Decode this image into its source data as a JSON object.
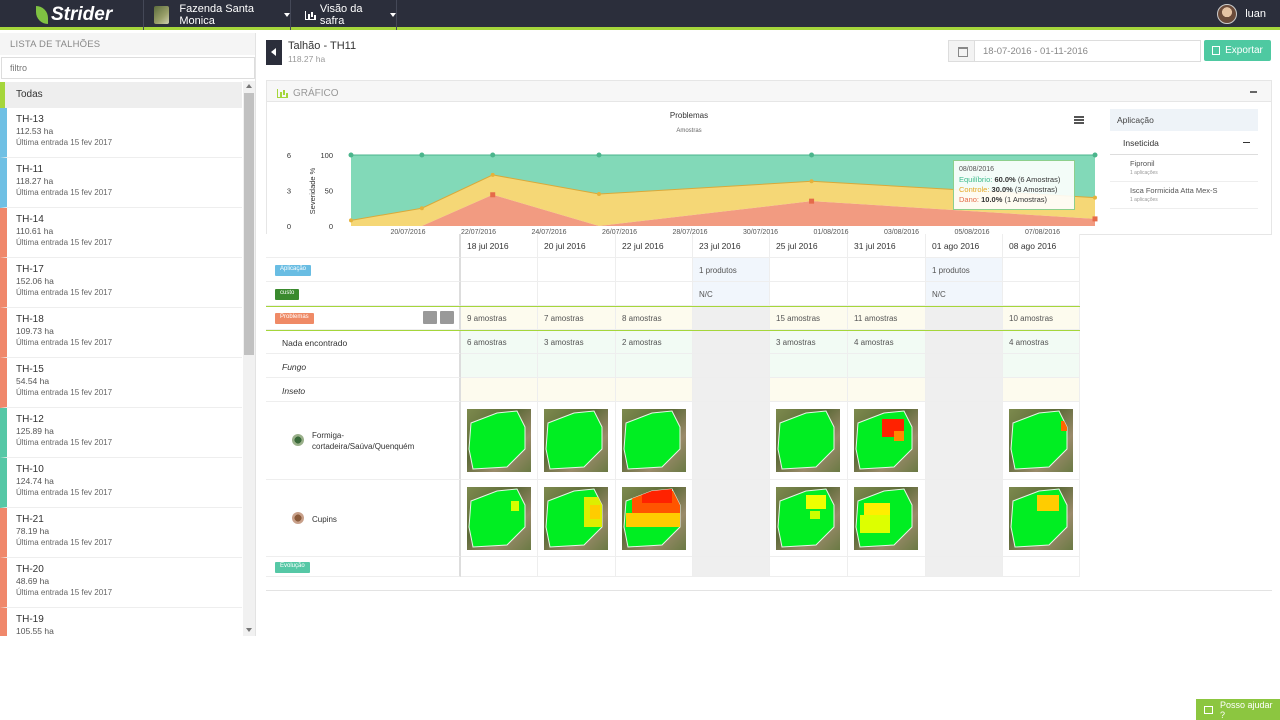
{
  "header": {
    "logo": "Strider",
    "farm": "Fazenda Santa Monica",
    "crop_view": "Visão da safra",
    "user": "luan"
  },
  "sidebar": {
    "title": "LISTA DE TALHÕES",
    "filter_placeholder": "filtro",
    "all_label": "Todas",
    "items": [
      {
        "name": "TH-13",
        "area": "112.53 ha",
        "last": "Última entrada 15 fev 2017",
        "color": "#6fc0e4"
      },
      {
        "name": "TH-11",
        "area": "118.27 ha",
        "last": "Última entrada 15 fev 2017",
        "color": "#6fc0e4"
      },
      {
        "name": "TH-14",
        "area": "110.61 ha",
        "last": "Última entrada 15 fev 2017",
        "color": "#f0886b"
      },
      {
        "name": "TH-17",
        "area": "152.06 ha",
        "last": "Última entrada 15 fev 2017",
        "color": "#f0886b"
      },
      {
        "name": "TH-18",
        "area": "109.73 ha",
        "last": "Última entrada 15 fev 2017",
        "color": "#f0886b"
      },
      {
        "name": "TH-15",
        "area": "54.54 ha",
        "last": "Última entrada 15 fev 2017",
        "color": "#f0886b"
      },
      {
        "name": "TH-12",
        "area": "125.89 ha",
        "last": "Última entrada 15 fev 2017",
        "color": "#56c8a6"
      },
      {
        "name": "TH-10",
        "area": "124.74 ha",
        "last": "Última entrada 15 fev 2017",
        "color": "#56c8a6"
      },
      {
        "name": "TH-21",
        "area": "78.19 ha",
        "last": "Última entrada 15 fev 2017",
        "color": "#f0886b"
      },
      {
        "name": "TH-20",
        "area": "48.69 ha",
        "last": "Última entrada 15 fev 2017",
        "color": "#f0886b"
      },
      {
        "name": "TH-19",
        "area": "105.55 ha",
        "last": "",
        "color": "#f0886b"
      }
    ]
  },
  "main": {
    "plot_title": "Talhão - TH11",
    "plot_area": "118.27 ha",
    "date_range": "18-07-2016 - 01-11-2016",
    "export_label": "Exportar",
    "panel_title": "GRÁFICO"
  },
  "chart_data": {
    "type": "area",
    "title": "Problemas",
    "subtitle": "Amostras",
    "ylabel": "Severidade %",
    "left_ticks": [
      "6",
      "3",
      "0"
    ],
    "y_ticks": [
      "100",
      "50",
      "0"
    ],
    "x_labels": [
      "20/07/2016",
      "22/07/2016",
      "24/07/2016",
      "26/07/2016",
      "28/07/2016",
      "30/07/2016",
      "01/08/2016",
      "03/08/2016",
      "05/08/2016",
      "07/08/2016"
    ],
    "ylim": [
      0,
      100
    ],
    "xlim": [
      "2016-07-18",
      "2016-08-08"
    ],
    "series": [
      {
        "name": "Equilíbrio",
        "color": "#82d9b8"
      },
      {
        "name": "Controle",
        "color": "#f5d776"
      },
      {
        "name": "Dano",
        "color": "#f29b81"
      }
    ],
    "points": [
      {
        "date": "2016-07-18",
        "dano": 0,
        "controle": 8,
        "equilibrio": 92
      },
      {
        "date": "2016-07-20",
        "dano": 0,
        "controle": 25,
        "equilibrio": 75
      },
      {
        "date": "2016-07-22",
        "dano": 44,
        "controle": 28,
        "equilibrio": 28
      },
      {
        "date": "2016-07-25",
        "dano": 0,
        "controle": 45,
        "equilibrio": 55
      },
      {
        "date": "2016-07-31",
        "dano": 35,
        "controle": 28,
        "equilibrio": 37
      },
      {
        "date": "2016-08-08",
        "dano": 10,
        "controle": 30,
        "equilibrio": 60
      }
    ],
    "tooltip": {
      "date": "08/08/2016",
      "rows": [
        {
          "label": "Equilíbrio:",
          "value": "60.0%",
          "count": "(6 Amostras)",
          "color": "#3dbb8c"
        },
        {
          "label": "Controle:",
          "value": "30.0%",
          "count": "(3 Amostras)",
          "color": "#e5a825"
        },
        {
          "label": "Dano:",
          "value": "10.0%",
          "count": "(1 Amostras)",
          "color": "#e56b4a"
        }
      ]
    }
  },
  "right_panel": {
    "header": "Aplicação",
    "sub": "Inseticida",
    "items": [
      {
        "name": "Fipronil",
        "count": "1 aplicações"
      },
      {
        "name": "Isca Formicida Atta Mex-S",
        "count": "1 aplicações"
      }
    ]
  },
  "grid": {
    "dates": [
      "18 jul 2016",
      "20 jul 2016",
      "22 jul 2016",
      "23 jul 2016",
      "25 jul 2016",
      "31 jul 2016",
      "01 ago 2016",
      "08 ago 2016"
    ],
    "tags": {
      "aplicacao": "Aplicação",
      "custo": "custo",
      "problemas": "Problemas",
      "evolucao": "Evolução"
    },
    "aplicacao_row": [
      "",
      "",
      "",
      "1 produtos",
      "",
      "",
      "1 produtos",
      ""
    ],
    "custo_row": [
      "",
      "",
      "",
      "N/C",
      "",
      "",
      "N/C",
      ""
    ],
    "problemas_row": [
      "9 amostras",
      "7 amostras",
      "8 amostras",
      "",
      "15 amostras",
      "11 amostras",
      "",
      "10 amostras"
    ],
    "nada_label": "Nada encontrado",
    "nada_row": [
      "6 amostras",
      "3 amostras",
      "2 amostras",
      "",
      "3 amostras",
      "4 amostras",
      "",
      "4 amostras"
    ],
    "fungo_label": "Fungo",
    "inseto_label": "Inseto",
    "pest1": "Formiga-cortadeira/Saúva/Quenquém",
    "pest2": "Cupins"
  },
  "help": "Posso ajudar ?"
}
